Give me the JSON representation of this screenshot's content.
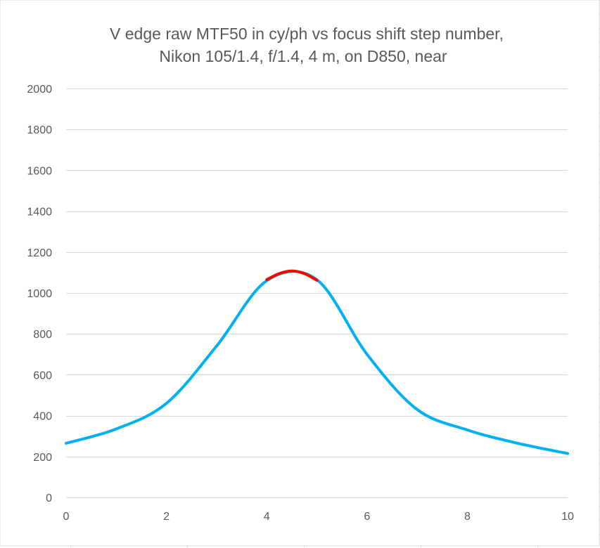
{
  "chart_data": {
    "type": "line",
    "title_lines": [
      "V edge raw MTF50 in cy/ph vs focus shift step number,",
      "Nikon 105/1.4, f/1.4, 4 m, on D850, near"
    ],
    "xlabel": "",
    "ylabel": "",
    "xlim": [
      0,
      10
    ],
    "ylim": [
      0,
      2000
    ],
    "x_ticks": [
      0,
      2,
      4,
      6,
      8,
      10
    ],
    "y_ticks": [
      0,
      200,
      400,
      600,
      800,
      1000,
      1200,
      1400,
      1600,
      1800,
      2000
    ],
    "grid": "horizontal",
    "legend": "none",
    "series": [
      {
        "color": "#00b0f0",
        "x": [
          0,
          1,
          2,
          3,
          4,
          5,
          6,
          7,
          8,
          9,
          10
        ],
        "values": [
          265,
          335,
          460,
          740,
          1060,
          1065,
          700,
          430,
          330,
          265,
          215
        ]
      },
      {
        "color": "#ff0000",
        "x": [
          4,
          4.25,
          4.5,
          4.75,
          5
        ],
        "values": [
          1065,
          1095,
          1108,
          1095,
          1062
        ]
      }
    ],
    "colors": {
      "gridline": "#d9d9d9",
      "text": "#595959",
      "sheet_grid": "#e3e3e3"
    }
  }
}
